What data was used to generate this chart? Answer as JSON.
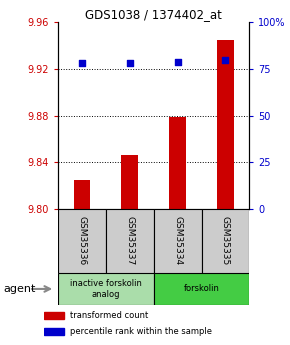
{
  "title": "GDS1038 / 1374402_at",
  "samples": [
    "GSM35336",
    "GSM35337",
    "GSM35334",
    "GSM35335"
  ],
  "bar_values": [
    9.825,
    9.846,
    9.879,
    9.945
  ],
  "percentile_values": [
    78,
    78,
    79,
    80
  ],
  "ylim_left": [
    9.8,
    9.96
  ],
  "ylim_right": [
    0,
    100
  ],
  "yticks_left": [
    9.8,
    9.84,
    9.88,
    9.92,
    9.96
  ],
  "yticks_right": [
    0,
    25,
    50,
    75,
    100
  ],
  "ytick_labels_right": [
    "0",
    "25",
    "50",
    "75",
    "100%"
  ],
  "bar_color": "#cc0000",
  "percentile_color": "#0000cc",
  "agent_groups": [
    {
      "label": "inactive forskolin\nanalog",
      "color": "#aaddaa",
      "span": [
        0,
        2
      ]
    },
    {
      "label": "forskolin",
      "color": "#44cc44",
      "span": [
        2,
        4
      ]
    }
  ],
  "legend_items": [
    {
      "color": "#cc0000",
      "label": "transformed count"
    },
    {
      "color": "#0000cc",
      "label": "percentile rank within the sample"
    }
  ],
  "bar_width": 0.35,
  "background_color": "#ffffff",
  "plot_bg_color": "#ffffff",
  "sample_box_color": "#cccccc"
}
